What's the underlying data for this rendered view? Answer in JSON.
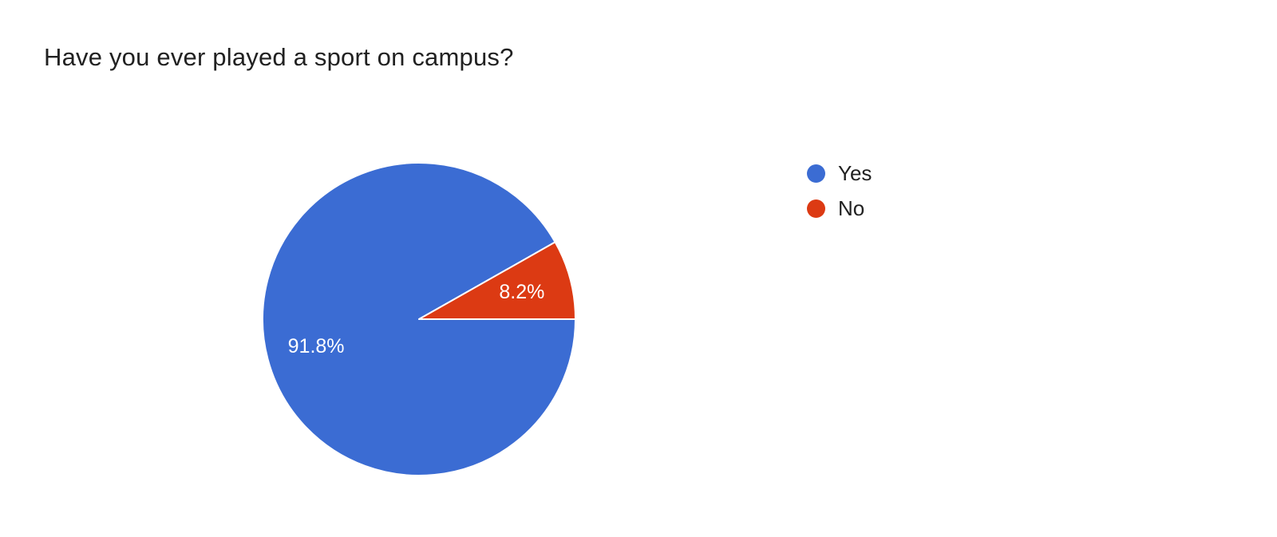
{
  "chart_data": {
    "type": "pie",
    "title": "Have you ever played a sport on campus?",
    "slices": [
      {
        "label": "Yes",
        "value": 91.8,
        "display_label": "91.8%",
        "color": "#3b6cd3"
      },
      {
        "label": "No",
        "value": 8.2,
        "display_label": "8.2%",
        "color": "#dc3a13"
      }
    ],
    "start_angle_deg": 0,
    "direction": "clockwise",
    "legend_position": "right",
    "legend_entries": [
      "Yes",
      "No"
    ],
    "slice_label_color": "#ffffff",
    "slice_separator_color": "#ffffff",
    "title_color": "#212121",
    "legend_text_color": "#212121",
    "background_color": "#ffffff"
  }
}
